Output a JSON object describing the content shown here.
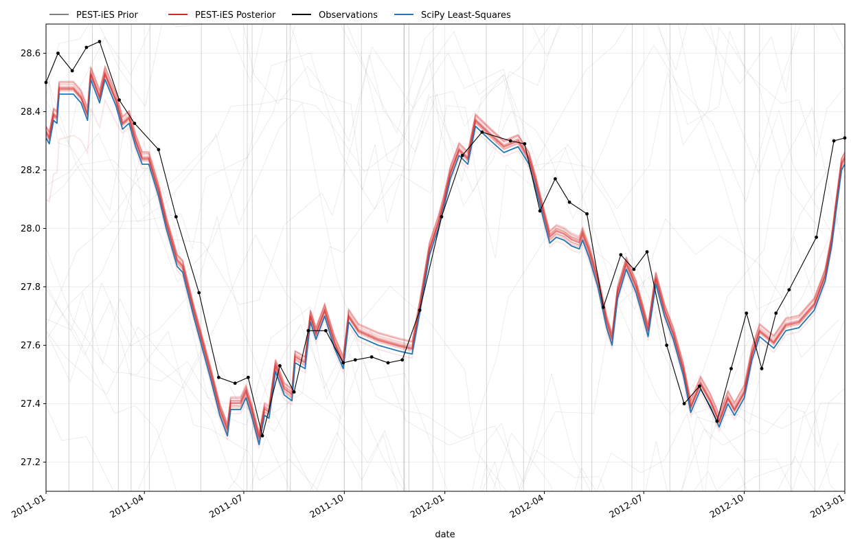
{
  "chart_data": {
    "type": "line",
    "title": "",
    "xlabel": "date",
    "ylabel": "",
    "xlim": [
      "2011-01-01",
      "2013-01-01"
    ],
    "ylim": [
      27.1,
      28.7
    ],
    "grid": true,
    "legend_placement": "top-left, above plot",
    "x_tick_labels": [
      "2011-01",
      "2011-04",
      "2011-07",
      "2011-10",
      "2012-01",
      "2012-04",
      "2012-07",
      "2012-10",
      "2013-01"
    ],
    "x_tick_dates": [
      "2011-01-01",
      "2011-04-01",
      "2011-07-01",
      "2011-10-01",
      "2012-01-01",
      "2012-04-01",
      "2012-07-01",
      "2012-10-01",
      "2013-01-01"
    ],
    "y_ticks": [
      27.2,
      27.4,
      27.6,
      27.8,
      28.0,
      28.2,
      28.4,
      28.6
    ],
    "y_tick_labels": [
      "27.2",
      "27.4",
      "27.6",
      "27.8",
      "28.0",
      "28.2",
      "28.4",
      "28.6"
    ],
    "legend": [
      {
        "label": "PEST-iES Prior",
        "color": "#808080"
      },
      {
        "label": "PEST-iES Posterior",
        "color": "#d62728"
      },
      {
        "label": "Observations",
        "color": "#000000"
      },
      {
        "label": "SciPy Least-Squares",
        "color": "#1f77b4"
      }
    ],
    "series": [
      {
        "name": "Observations",
        "color": "#000000",
        "marker": "dot",
        "points": [
          [
            "2011-01-01",
            28.5
          ],
          [
            "2011-01-12",
            28.6
          ],
          [
            "2011-01-25",
            28.54
          ],
          [
            "2011-02-07",
            28.62
          ],
          [
            "2011-02-19",
            28.64
          ],
          [
            "2011-03-09",
            28.44
          ],
          [
            "2011-03-23",
            28.36
          ],
          [
            "2011-04-14",
            28.27
          ],
          [
            "2011-04-30",
            28.04
          ],
          [
            "2011-05-21",
            27.78
          ],
          [
            "2011-06-08",
            27.49
          ],
          [
            "2011-06-23",
            27.47
          ],
          [
            "2011-07-05",
            27.49
          ],
          [
            "2011-07-18",
            27.29
          ],
          [
            "2011-08-03",
            27.53
          ],
          [
            "2011-08-16",
            27.44
          ],
          [
            "2011-08-29",
            27.65
          ],
          [
            "2011-09-14",
            27.65
          ],
          [
            "2011-09-30",
            27.54
          ],
          [
            "2011-10-11",
            27.55
          ],
          [
            "2011-10-26",
            27.56
          ],
          [
            "2011-11-10",
            27.54
          ],
          [
            "2011-11-23",
            27.55
          ],
          [
            "2011-12-09",
            27.72
          ],
          [
            "2011-12-29",
            28.04
          ],
          [
            "2012-01-17",
            28.25
          ],
          [
            "2012-02-04",
            28.33
          ],
          [
            "2012-03-01",
            28.3
          ],
          [
            "2012-03-14",
            28.29
          ],
          [
            "2012-03-28",
            28.06
          ],
          [
            "2012-04-11",
            28.17
          ],
          [
            "2012-04-24",
            28.09
          ],
          [
            "2012-05-10",
            28.05
          ],
          [
            "2012-05-25",
            27.73
          ],
          [
            "2012-06-10",
            27.91
          ],
          [
            "2012-06-22",
            27.86
          ],
          [
            "2012-07-04",
            27.92
          ],
          [
            "2012-07-22",
            27.6
          ],
          [
            "2012-08-07",
            27.4
          ],
          [
            "2012-08-21",
            27.46
          ],
          [
            "2012-09-06",
            27.34
          ],
          [
            "2012-09-19",
            27.52
          ],
          [
            "2012-10-03",
            27.71
          ],
          [
            "2012-10-17",
            27.52
          ],
          [
            "2012-10-30",
            27.71
          ],
          [
            "2012-11-11",
            27.79
          ],
          [
            "2012-12-06",
            27.97
          ],
          [
            "2012-12-22",
            28.3
          ],
          [
            "2013-01-01",
            28.31
          ]
        ]
      },
      {
        "name": "SciPy Least-Squares",
        "color": "#1f77b4",
        "points": [
          [
            "2011-01-01",
            28.31
          ],
          [
            "2011-01-04",
            28.29
          ],
          [
            "2011-01-08",
            28.37
          ],
          [
            "2011-01-11",
            28.36
          ],
          [
            "2011-01-13",
            28.46
          ],
          [
            "2011-01-26",
            28.46
          ],
          [
            "2011-02-02",
            28.43
          ],
          [
            "2011-02-08",
            28.37
          ],
          [
            "2011-02-11",
            28.51
          ],
          [
            "2011-02-19",
            28.43
          ],
          [
            "2011-02-24",
            28.51
          ],
          [
            "2011-03-06",
            28.42
          ],
          [
            "2011-03-12",
            28.34
          ],
          [
            "2011-03-18",
            28.36
          ],
          [
            "2011-03-24",
            28.28
          ],
          [
            "2011-03-30",
            28.22
          ],
          [
            "2011-04-05",
            28.22
          ],
          [
            "2011-04-14",
            28.11
          ],
          [
            "2011-04-21",
            28.0
          ],
          [
            "2011-05-01",
            27.87
          ],
          [
            "2011-05-06",
            27.85
          ],
          [
            "2011-05-16",
            27.7
          ],
          [
            "2011-06-01",
            27.48
          ],
          [
            "2011-06-09",
            27.36
          ],
          [
            "2011-06-16",
            27.29
          ],
          [
            "2011-06-19",
            27.38
          ],
          [
            "2011-06-28",
            27.38
          ],
          [
            "2011-07-03",
            27.42
          ],
          [
            "2011-07-08",
            27.36
          ],
          [
            "2011-07-15",
            27.26
          ],
          [
            "2011-07-20",
            27.36
          ],
          [
            "2011-07-24",
            27.35
          ],
          [
            "2011-07-30",
            27.51
          ],
          [
            "2011-08-07",
            27.43
          ],
          [
            "2011-08-14",
            27.41
          ],
          [
            "2011-08-17",
            27.54
          ],
          [
            "2011-08-26",
            27.52
          ],
          [
            "2011-08-31",
            27.68
          ],
          [
            "2011-09-05",
            27.62
          ],
          [
            "2011-09-13",
            27.7
          ],
          [
            "2011-09-22",
            27.59
          ],
          [
            "2011-09-30",
            27.52
          ],
          [
            "2011-10-05",
            27.68
          ],
          [
            "2011-10-14",
            27.63
          ],
          [
            "2011-11-01",
            27.6
          ],
          [
            "2011-11-20",
            27.58
          ],
          [
            "2011-12-02",
            27.57
          ],
          [
            "2011-12-09",
            27.71
          ],
          [
            "2011-12-18",
            27.91
          ],
          [
            "2011-12-26",
            28.0
          ],
          [
            "2011-12-31",
            28.07
          ],
          [
            "2012-01-06",
            28.17
          ],
          [
            "2012-01-14",
            28.25
          ],
          [
            "2012-01-22",
            28.22
          ],
          [
            "2012-01-29",
            28.35
          ],
          [
            "2012-02-12",
            28.3
          ],
          [
            "2012-02-24",
            28.26
          ],
          [
            "2012-03-08",
            28.28
          ],
          [
            "2012-03-18",
            28.22
          ],
          [
            "2012-03-24",
            28.14
          ],
          [
            "2012-04-01",
            28.02
          ],
          [
            "2012-04-06",
            27.95
          ],
          [
            "2012-04-12",
            27.97
          ],
          [
            "2012-04-19",
            27.96
          ],
          [
            "2012-04-26",
            27.94
          ],
          [
            "2012-05-03",
            27.93
          ],
          [
            "2012-05-06",
            27.96
          ],
          [
            "2012-05-12",
            27.9
          ],
          [
            "2012-05-20",
            27.8
          ],
          [
            "2012-05-28",
            27.66
          ],
          [
            "2012-06-02",
            27.6
          ],
          [
            "2012-06-07",
            27.76
          ],
          [
            "2012-06-15",
            27.86
          ],
          [
            "2012-06-24",
            27.78
          ],
          [
            "2012-06-30",
            27.7
          ],
          [
            "2012-07-05",
            27.63
          ],
          [
            "2012-07-12",
            27.81
          ],
          [
            "2012-07-20",
            27.7
          ],
          [
            "2012-07-28",
            27.62
          ],
          [
            "2012-08-06",
            27.5
          ],
          [
            "2012-08-13",
            27.37
          ],
          [
            "2012-08-22",
            27.45
          ],
          [
            "2012-08-31",
            27.39
          ],
          [
            "2012-09-08",
            27.32
          ],
          [
            "2012-09-16",
            27.4
          ],
          [
            "2012-09-22",
            27.36
          ],
          [
            "2012-10-01",
            27.42
          ],
          [
            "2012-10-08",
            27.55
          ],
          [
            "2012-10-15",
            27.63
          ],
          [
            "2012-10-28",
            27.59
          ],
          [
            "2012-11-08",
            27.65
          ],
          [
            "2012-11-20",
            27.66
          ],
          [
            "2012-12-04",
            27.72
          ],
          [
            "2012-12-14",
            27.82
          ],
          [
            "2012-12-20",
            27.94
          ],
          [
            "2012-12-24",
            28.06
          ],
          [
            "2012-12-29",
            28.2
          ],
          [
            "2013-01-01",
            28.22
          ]
        ]
      }
    ]
  }
}
